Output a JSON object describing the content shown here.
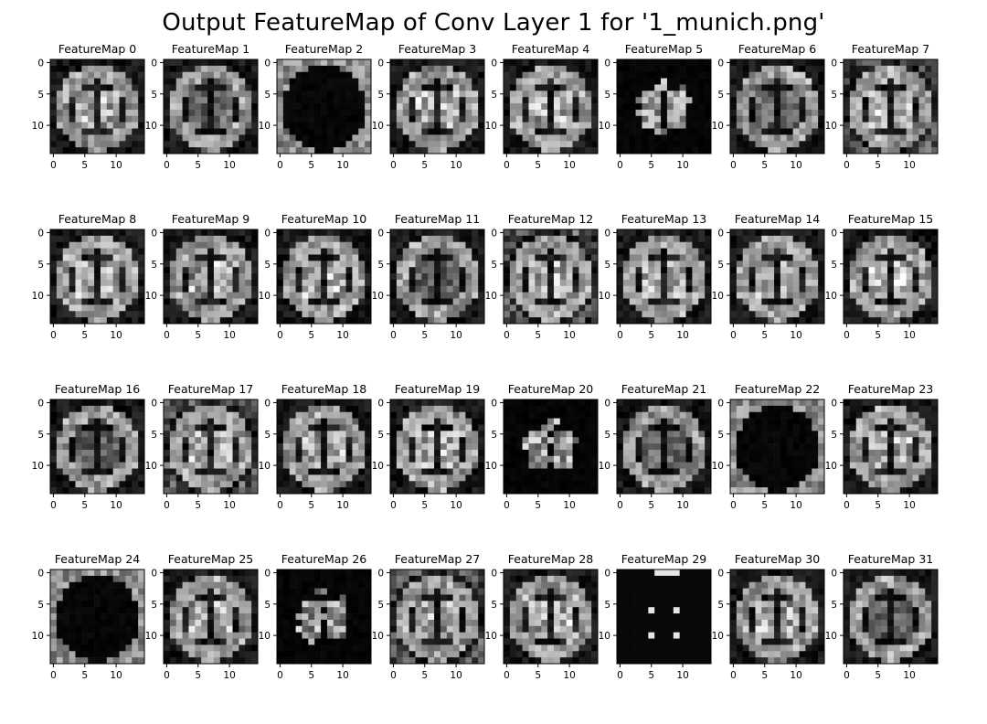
{
  "figure": {
    "title": "Output FeatureMap of Conv Layer 1 for '1_munich.png'"
  },
  "chart_data": {
    "type": "heatmap",
    "colormap": "gray",
    "title": "Output FeatureMap of Conv Layer 1 for '1_munich.png'",
    "grid": false,
    "map_size": [
      15,
      15
    ],
    "xticks": [
      "0",
      "5",
      "10"
    ],
    "yticks": [
      "0",
      "5",
      "10"
    ],
    "panels": [
      {
        "title": "FeatureMap 0"
      },
      {
        "title": "FeatureMap 1"
      },
      {
        "title": "FeatureMap 2"
      },
      {
        "title": "FeatureMap 3"
      },
      {
        "title": "FeatureMap 4"
      },
      {
        "title": "FeatureMap 5"
      },
      {
        "title": "FeatureMap 6"
      },
      {
        "title": "FeatureMap 7"
      },
      {
        "title": "FeatureMap 8"
      },
      {
        "title": "FeatureMap 9"
      },
      {
        "title": "FeatureMap 10"
      },
      {
        "title": "FeatureMap 11"
      },
      {
        "title": "FeatureMap 12"
      },
      {
        "title": "FeatureMap 13"
      },
      {
        "title": "FeatureMap 14"
      },
      {
        "title": "FeatureMap 15"
      },
      {
        "title": "FeatureMap 16"
      },
      {
        "title": "FeatureMap 17"
      },
      {
        "title": "FeatureMap 18"
      },
      {
        "title": "FeatureMap 19"
      },
      {
        "title": "FeatureMap 20"
      },
      {
        "title": "FeatureMap 21"
      },
      {
        "title": "FeatureMap 22"
      },
      {
        "title": "FeatureMap 23"
      },
      {
        "title": "FeatureMap 24"
      },
      {
        "title": "FeatureMap 25"
      },
      {
        "title": "FeatureMap 26"
      },
      {
        "title": "FeatureMap 27"
      },
      {
        "title": "FeatureMap 28"
      },
      {
        "title": "FeatureMap 29"
      },
      {
        "title": "FeatureMap 30"
      },
      {
        "title": "FeatureMap 31"
      }
    ]
  }
}
